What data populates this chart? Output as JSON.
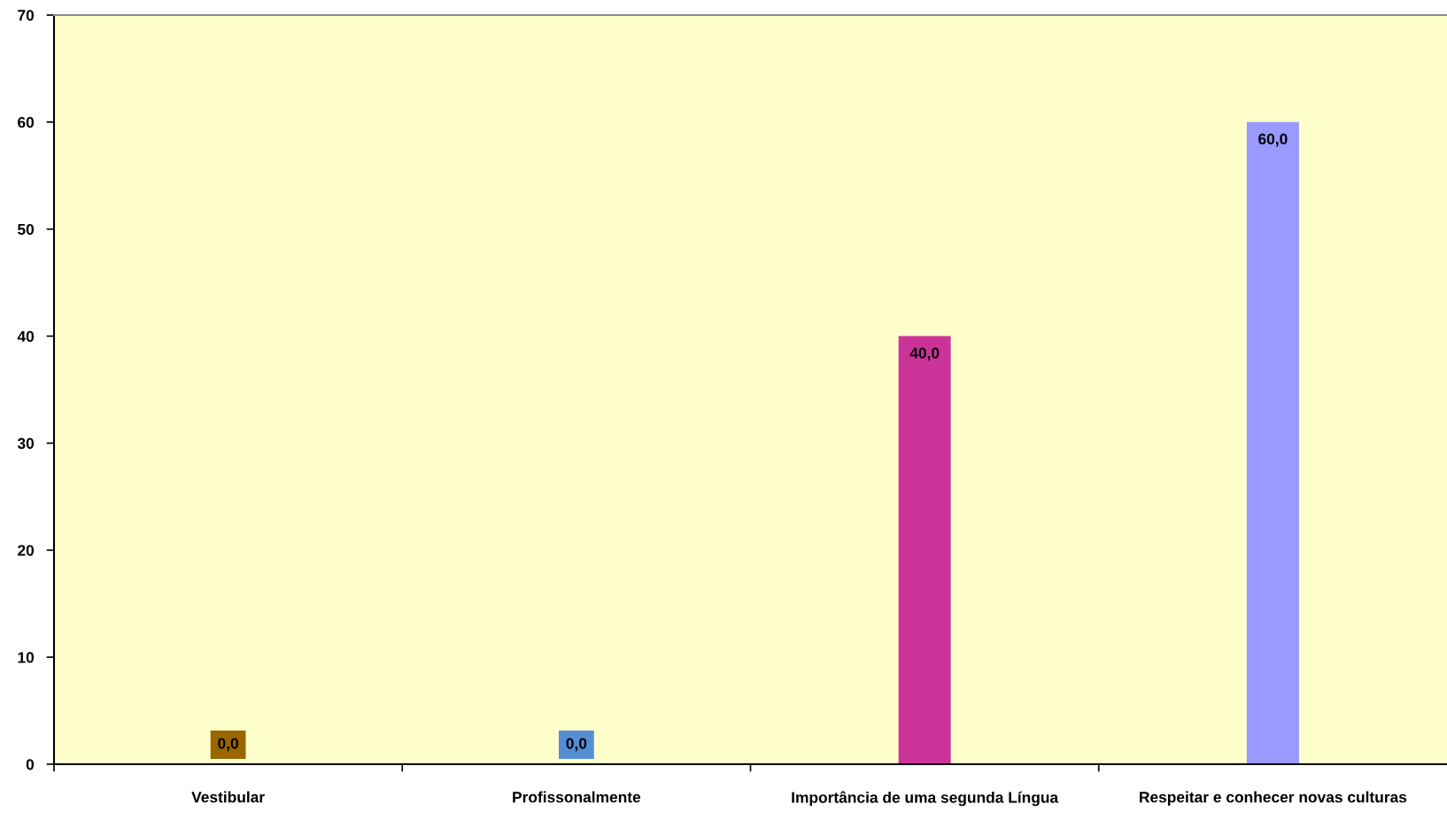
{
  "chart_data": {
    "type": "bar",
    "categories": [
      "Vestibular",
      "Profissonalmente",
      "Importância de uma segunda Língua",
      "Respeitar e conhecer novas culturas"
    ],
    "values": [
      0,
      0,
      40,
      60
    ],
    "colors": [
      "#996600",
      "#558ed5",
      "#cc3399",
      "#9999ff"
    ],
    "value_labels": [
      "0,0",
      "0,0",
      "40,0",
      "60,0"
    ],
    "ylim": [
      0,
      70
    ],
    "yticks": [
      0,
      10,
      20,
      30,
      40,
      50,
      60,
      70
    ]
  }
}
